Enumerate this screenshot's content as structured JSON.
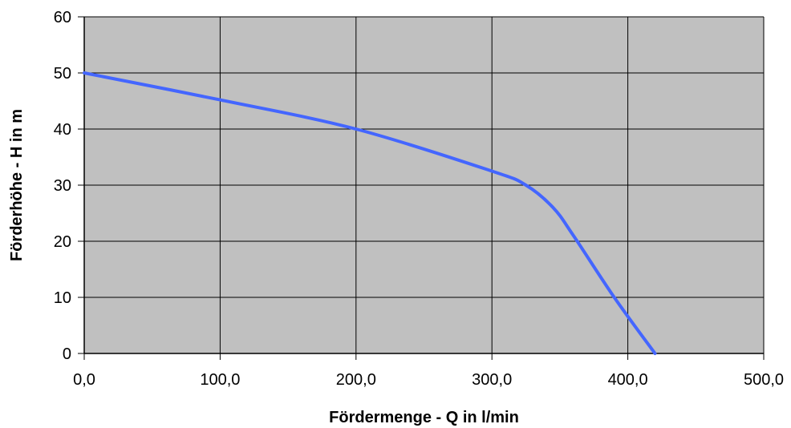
{
  "chart_data": {
    "type": "line",
    "title": "",
    "xlabel": "Fördermenge - Q in l/min",
    "ylabel": "Förderhöhe - H in m",
    "xlim": [
      0,
      500
    ],
    "ylim": [
      0,
      60
    ],
    "xticks": [
      0,
      100,
      200,
      300,
      400,
      500
    ],
    "xtick_labels": [
      "0,0",
      "100,0",
      "200,0",
      "300,0",
      "400,0",
      "500,0"
    ],
    "yticks": [
      0,
      10,
      20,
      30,
      40,
      50,
      60
    ],
    "ytick_labels": [
      "0",
      "10",
      "20",
      "30",
      "40",
      "50",
      "60"
    ],
    "grid": true,
    "legend": "none",
    "colors": {
      "plot_background": "#c0c0c0",
      "series_line": "#4466ff",
      "grid": "#000000"
    },
    "series": [
      {
        "x": [
          0,
          100,
          200,
          300,
          325,
          345,
          360,
          390,
          420
        ],
        "y": [
          50,
          45.2,
          40,
          32.5,
          30,
          26,
          21,
          10,
          0
        ]
      }
    ]
  }
}
